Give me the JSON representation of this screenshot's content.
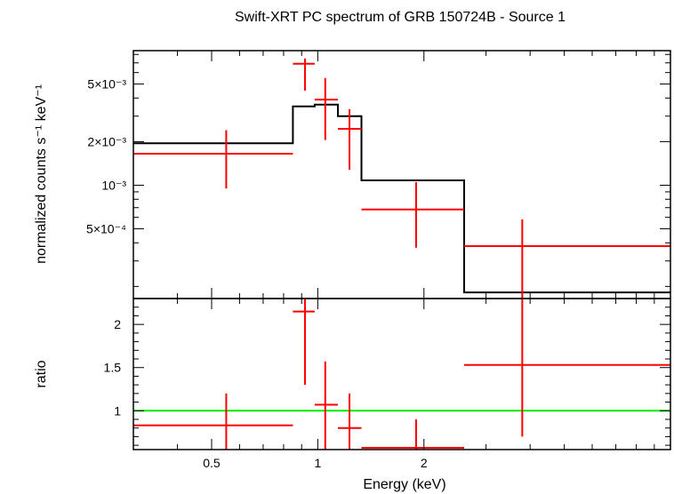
{
  "chart_data": [
    {
      "type": "scatter",
      "title": "Swift-XRT PC spectrum of GRB 150724B - Source 1",
      "xlabel": "Energy (keV)",
      "ylabel": "normalized counts s⁻¹ keV⁻¹",
      "xscale": "log",
      "yscale": "log",
      "xlim": [
        0.3,
        10
      ],
      "ylim": [
        0.000165,
        0.0085
      ],
      "y_ticks": [
        {
          "value": 0.005,
          "label": "5×10⁻³"
        },
        {
          "value": 0.002,
          "label": "2×10⁻³"
        },
        {
          "value": 0.001,
          "label": "10⁻³"
        },
        {
          "value": 0.0005,
          "label": "5×10⁻⁴"
        }
      ],
      "series": [
        {
          "kind": "data",
          "color": "#ff0000",
          "points": [
            {
              "x": 0.55,
              "xerr": [
                0.3,
                0.85
              ],
              "y": 0.00165,
              "yerr": [
                0.00095,
                0.0024
              ]
            },
            {
              "x": 0.92,
              "xerr": [
                0.85,
                0.98
              ],
              "y": 0.0069,
              "yerr": [
                0.0045,
                0.0075
              ]
            },
            {
              "x": 1.05,
              "xerr": [
                0.98,
                1.14
              ],
              "y": 0.0039,
              "yerr": [
                0.00205,
                0.0055
              ]
            },
            {
              "x": 1.23,
              "xerr": [
                1.14,
                1.33
              ],
              "y": 0.00245,
              "yerr": [
                0.00128,
                0.00335
              ]
            },
            {
              "x": 1.9,
              "xerr": [
                1.33,
                2.6
              ],
              "y": 0.00068,
              "yerr": [
                0.00037,
                0.00105
              ]
            },
            {
              "x": 3.8,
              "xerr": [
                2.6,
                10
              ],
              "y": 0.00038,
              "yerr": [
                0.000165,
                0.00058
              ]
            }
          ]
        },
        {
          "kind": "model",
          "color": "#000000",
          "steps": [
            {
              "x0": 0.3,
              "x1": 0.85,
              "y": 0.00195
            },
            {
              "x0": 0.85,
              "x1": 0.98,
              "y": 0.0035
            },
            {
              "x0": 0.98,
              "x1": 1.14,
              "y": 0.0036
            },
            {
              "x0": 1.14,
              "x1": 1.33,
              "y": 0.003
            },
            {
              "x0": 1.33,
              "x1": 2.6,
              "y": 0.00108
            },
            {
              "x0": 2.6,
              "x1": 10,
              "y": 0.000182
            }
          ]
        }
      ]
    },
    {
      "type": "scatter",
      "xlabel": "Energy (keV)",
      "ylabel": "ratio",
      "xscale": "log",
      "xlim": [
        0.3,
        10
      ],
      "ylim": [
        0.55,
        2.3
      ],
      "x_ticks": [
        {
          "value": 0.5,
          "label": "0.5"
        },
        {
          "value": 1,
          "label": "1"
        },
        {
          "value": 2,
          "label": "2"
        }
      ],
      "y_ticks": [
        {
          "value": 1,
          "label": "1"
        },
        {
          "value": 1.5,
          "label": "1.5"
        },
        {
          "value": 2,
          "label": "2"
        }
      ],
      "reference_line": {
        "y": 1,
        "color": "#00ee00"
      },
      "series": [
        {
          "kind": "data",
          "color": "#ff0000",
          "points": [
            {
              "x": 0.55,
              "xerr": [
                0.3,
                0.85
              ],
              "y": 0.83,
              "yerr": [
                0.55,
                1.2
              ]
            },
            {
              "x": 0.92,
              "xerr": [
                0.85,
                0.98
              ],
              "y": 2.15,
              "yerr": [
                1.3,
                2.3
              ]
            },
            {
              "x": 1.05,
              "xerr": [
                0.98,
                1.14
              ],
              "y": 1.07,
              "yerr": [
                0.55,
                1.57
              ]
            },
            {
              "x": 1.23,
              "xerr": [
                1.14,
                1.33
              ],
              "y": 0.8,
              "yerr": [
                0.55,
                1.2
              ]
            },
            {
              "x": 1.9,
              "xerr": [
                1.33,
                2.6
              ],
              "y": 0.57,
              "yerr": [
                0.55,
                0.9
              ]
            },
            {
              "x": 3.8,
              "xerr": [
                2.6,
                10
              ],
              "y": 1.53,
              "yerr": [
                0.7,
                2.3
              ]
            }
          ]
        }
      ]
    }
  ]
}
